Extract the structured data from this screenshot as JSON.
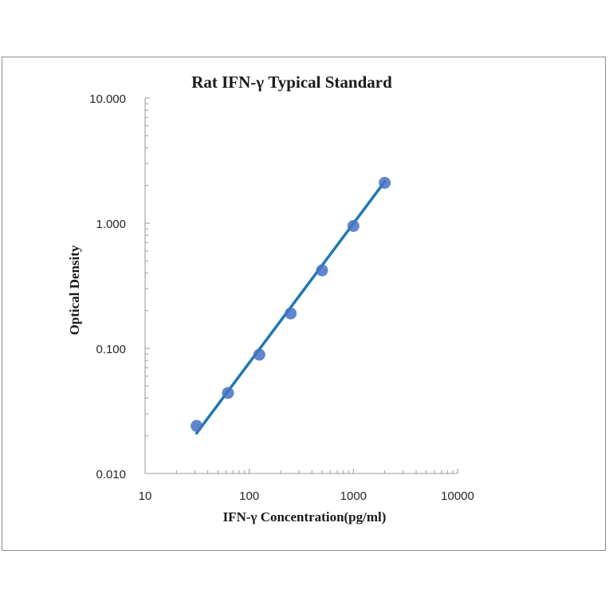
{
  "chart_data": {
    "type": "scatter",
    "title": "Rat IFN-γ Typical Standard",
    "xlabel": "IFN-γ Concentration(pg/ml)",
    "ylabel": "Optical Density",
    "x_scale": "log",
    "y_scale": "log",
    "xlim": [
      10,
      10000
    ],
    "ylim": [
      0.01,
      10
    ],
    "x_tick_labels": [
      "10",
      "100",
      "1000",
      "10000"
    ],
    "y_tick_labels": [
      "10.000",
      "1.000",
      "0.100",
      "0.010"
    ],
    "grid": false,
    "legend": "none",
    "series": [
      {
        "x": [
          31.25,
          62.5,
          125,
          250,
          500,
          1000,
          2000
        ],
        "y": [
          0.024,
          0.044,
          0.089,
          0.19,
          0.42,
          0.95,
          2.1
        ],
        "color": "#4472C4",
        "trendline": {
          "color": "#1F77B4",
          "from_x": 31.25,
          "to_x": 2000,
          "from_y": 0.021,
          "to_y": 2.15
        }
      }
    ]
  }
}
